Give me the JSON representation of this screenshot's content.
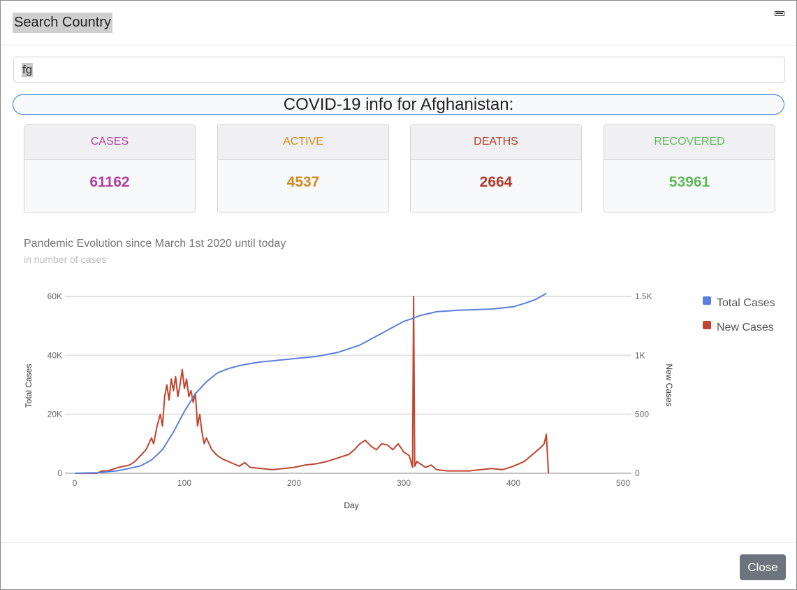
{
  "modal": {
    "title": "Search Country"
  },
  "search": {
    "value": "fg"
  },
  "info": {
    "title": "COVID-19 info for Afghanistan:"
  },
  "cards": [
    {
      "label": "CASES",
      "value": "61162",
      "color": "#b0409e"
    },
    {
      "label": "ACTIVE",
      "value": "4537",
      "color": "#d08a1e"
    },
    {
      "label": "DEATHS",
      "value": "2664",
      "color": "#b03a2e"
    },
    {
      "label": "RECOVERED",
      "value": "53961",
      "color": "#5fb85a"
    }
  ],
  "chart_title": "Pandemic Evolution since March 1st 2020 until today",
  "chart_subtitle": "in number of cases",
  "footer": {
    "close_label": "Close"
  },
  "chart_data": {
    "type": "line",
    "xlabel": "Day",
    "ylabel_left": "Total Cases",
    "ylabel_right": "New Cases",
    "xlim": [
      0,
      500
    ],
    "ylim_left": [
      0,
      60000
    ],
    "ylim_right": [
      0,
      1500
    ],
    "x_ticks": [
      "0",
      "100",
      "200",
      "300",
      "400",
      "500"
    ],
    "y_left_ticks": [
      "0",
      "20K",
      "40K",
      "60K"
    ],
    "y_right_ticks": [
      "0",
      "500",
      "1K",
      "1.5K"
    ],
    "legend_position": "right",
    "grid": true,
    "series": [
      {
        "name": "Total Cases",
        "axis": "left",
        "color": "#5b7fde",
        "x": [
          0,
          20,
          40,
          60,
          70,
          80,
          90,
          100,
          110,
          120,
          130,
          140,
          150,
          160,
          170,
          180,
          200,
          220,
          240,
          260,
          270,
          280,
          290,
          300,
          308,
          315,
          330,
          350,
          380,
          400,
          410,
          420,
          430
        ],
        "y": [
          0,
          200,
          900,
          2500,
          4500,
          8000,
          14000,
          21000,
          27000,
          31000,
          34000,
          35500,
          36500,
          37200,
          37800,
          38100,
          38900,
          39600,
          41000,
          43500,
          45500,
          47500,
          49500,
          51500,
          52500,
          53500,
          54800,
          55300,
          55700,
          56500,
          57600,
          58900,
          61000
        ]
      },
      {
        "name": "New Cases",
        "axis": "right",
        "color": "#c0442e",
        "x": [
          0,
          20,
          25,
          30,
          40,
          50,
          55,
          60,
          65,
          70,
          72,
          75,
          78,
          80,
          82,
          84,
          86,
          88,
          90,
          92,
          94,
          96,
          98,
          100,
          102,
          104,
          106,
          108,
          110,
          112,
          114,
          116,
          118,
          120,
          125,
          130,
          135,
          140,
          145,
          150,
          155,
          160,
          170,
          180,
          190,
          200,
          210,
          220,
          230,
          240,
          250,
          255,
          260,
          265,
          270,
          275,
          280,
          285,
          290,
          295,
          300,
          305,
          308,
          309,
          310,
          312,
          315,
          320,
          325,
          330,
          340,
          350,
          360,
          370,
          380,
          390,
          400,
          410,
          420,
          425,
          428,
          430,
          432
        ],
        "y": [
          0,
          0,
          20,
          20,
          50,
          70,
          100,
          150,
          200,
          300,
          250,
          400,
          500,
          400,
          650,
          750,
          620,
          800,
          700,
          820,
          650,
          750,
          880,
          720,
          800,
          650,
          700,
          600,
          680,
          400,
          500,
          350,
          250,
          300,
          200,
          150,
          120,
          100,
          80,
          60,
          90,
          50,
          40,
          30,
          40,
          50,
          70,
          80,
          100,
          130,
          160,
          200,
          250,
          280,
          230,
          200,
          250,
          240,
          200,
          250,
          180,
          150,
          50,
          1500,
          60,
          100,
          80,
          50,
          70,
          30,
          20,
          20,
          20,
          30,
          40,
          30,
          60,
          100,
          180,
          220,
          250,
          330,
          0
        ]
      }
    ]
  }
}
